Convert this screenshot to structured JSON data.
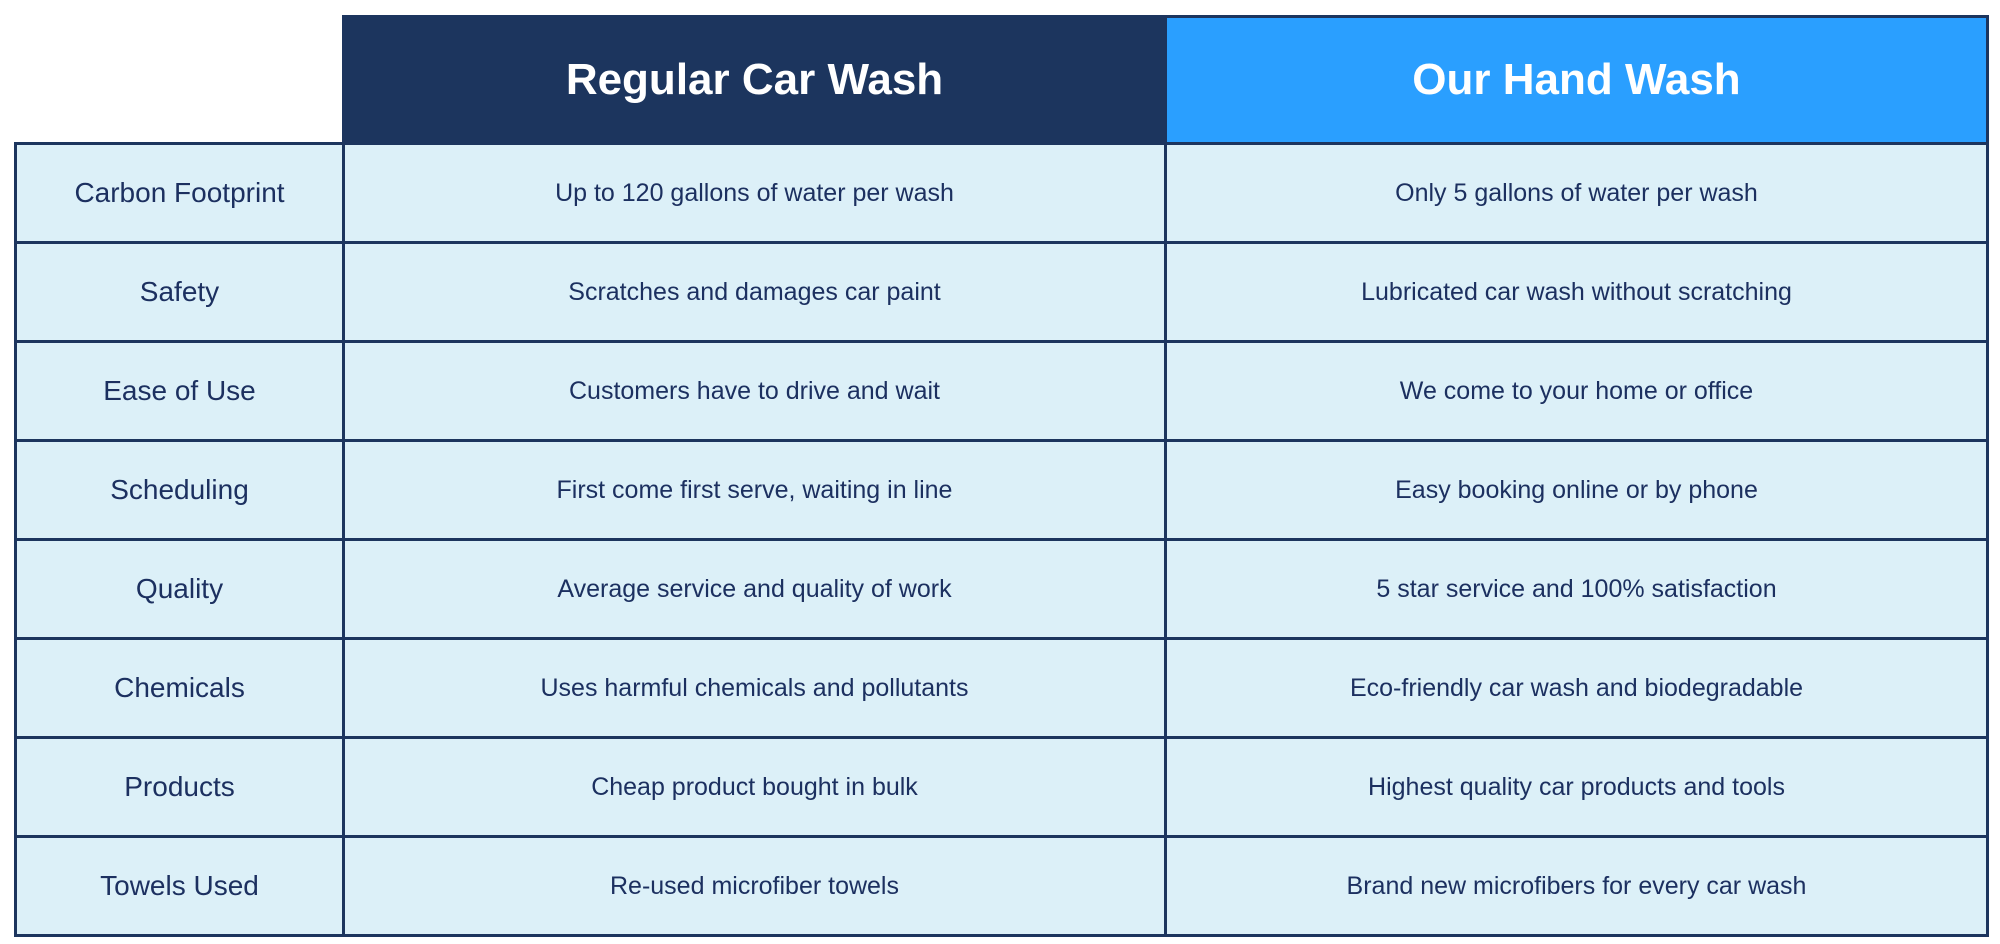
{
  "header": {
    "regular": "Regular Car Wash",
    "ours": "Our Hand Wash"
  },
  "colors": {
    "regular_header": "#1c355e",
    "ours_header": "#2a9fff",
    "cell_bg": "#dcf0f8",
    "text": "#1c3060"
  },
  "rows": [
    {
      "label": "Carbon Footprint",
      "regular": "Up to 120 gallons of water per wash",
      "ours": "Only 5 gallons of water per wash"
    },
    {
      "label": "Safety",
      "regular": "Scratches and damages car paint",
      "ours": "Lubricated car wash without scratching"
    },
    {
      "label": "Ease of Use",
      "regular": "Customers have to drive and wait",
      "ours": "We come to your home or office"
    },
    {
      "label": "Scheduling",
      "regular": "First come first serve, waiting in line",
      "ours": "Easy booking online or by phone"
    },
    {
      "label": "Quality",
      "regular": "Average service and quality of work",
      "ours": "5 star service and 100% satisfaction"
    },
    {
      "label": "Chemicals",
      "regular": "Uses harmful chemicals and pollutants",
      "ours": "Eco-friendly car wash and biodegradable"
    },
    {
      "label": "Products",
      "regular": "Cheap product bought in bulk",
      "ours": "Highest quality car products and tools"
    },
    {
      "label": "Towels Used",
      "regular": "Re-used microfiber towels",
      "ours": "Brand new microfibers for every car wash"
    }
  ]
}
